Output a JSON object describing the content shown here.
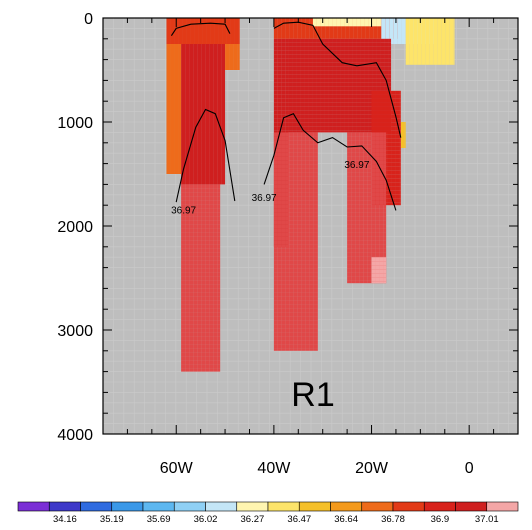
{
  "chart_data": {
    "type": "heatmap",
    "title": "",
    "xlabel": "",
    "ylabel": "",
    "x_axis": {
      "unit": "deg_lon",
      "range": [
        -75,
        10
      ],
      "ticks": [
        -60,
        -40,
        -20,
        0
      ],
      "tick_labels": [
        "60W",
        "40W",
        "20W",
        "0"
      ]
    },
    "y_axis": {
      "unit": "depth_m",
      "range": [
        0,
        4000
      ],
      "inverted": true,
      "ticks": [
        0,
        1000,
        2000,
        3000,
        4000
      ],
      "tick_labels": [
        "0",
        "1000",
        "2000",
        "3000",
        "4000"
      ]
    },
    "background_color": "#bebebe",
    "grid": true,
    "region_label": "R1",
    "colorbar": {
      "placement": "bottom",
      "colors": [
        "#7b2fd6",
        "#3e39c9",
        "#2f6be0",
        "#3a98e8",
        "#5db7f0",
        "#8fd0f5",
        "#c4e6f7",
        "#fff5b0",
        "#fde46a",
        "#f5c02a",
        "#f49a1c",
        "#ee6b1b",
        "#e23a17",
        "#d8221b",
        "#cf1f1f",
        "#f4a6a6"
      ],
      "level_labels": [
        "34.16",
        "35.19",
        "35.69",
        "36.02",
        "36.27",
        "36.47",
        "36.64",
        "36.78",
        "36.9",
        "37.01"
      ]
    },
    "contour": {
      "level": 36.97,
      "label": "36.97",
      "paths": [
        [
          [
            -61,
            170
          ],
          [
            -60,
            100
          ],
          [
            -57,
            60
          ],
          [
            -53,
            50
          ],
          [
            -50,
            60
          ],
          [
            -49,
            150
          ]
        ],
        [
          [
            -40,
            100
          ],
          [
            -38,
            50
          ],
          [
            -35,
            40
          ],
          [
            -32,
            70
          ],
          [
            -30,
            250
          ],
          [
            -26,
            430
          ],
          [
            -23,
            460
          ],
          [
            -19,
            430
          ],
          [
            -17,
            600
          ],
          [
            -15,
            950
          ],
          [
            -14,
            1150
          ]
        ],
        [
          [
            -60,
            1770
          ],
          [
            -58.5,
            1450
          ],
          [
            -56,
            1050
          ],
          [
            -54,
            880
          ],
          [
            -52,
            920
          ],
          [
            -50,
            1180
          ],
          [
            -48,
            1760
          ]
        ],
        [
          [
            -42,
            1600
          ],
          [
            -40,
            1320
          ],
          [
            -38,
            960
          ],
          [
            -36,
            920
          ],
          [
            -34,
            1080
          ],
          [
            -31,
            1200
          ],
          [
            -28,
            1150
          ],
          [
            -25,
            1240
          ],
          [
            -22,
            1230
          ],
          [
            -19,
            1380
          ],
          [
            -17,
            1560
          ],
          [
            -15,
            1850
          ]
        ]
      ],
      "labels": [
        [
          -58.5,
          1880
        ],
        [
          -42,
          1760
        ],
        [
          -23,
          1440
        ]
      ]
    },
    "fields": [
      {
        "x": [
          -62,
          -47
        ],
        "y": [
          0,
          250
        ],
        "value": 36.97,
        "color": "#e23a17"
      },
      {
        "x": [
          -40,
          -14
        ],
        "y": [
          0,
          200
        ],
        "value": 36.97,
        "color": "#e23a17"
      },
      {
        "x": [
          -32,
          -18
        ],
        "y": [
          0,
          80
        ],
        "value": 36.47,
        "color": "#fff5b0"
      },
      {
        "x": [
          -18,
          -7
        ],
        "y": [
          0,
          250
        ],
        "value": 36.27,
        "color": "#c4e6f7"
      },
      {
        "x": [
          -13,
          -3
        ],
        "y": [
          0,
          450
        ],
        "value": 36.47,
        "color": "#fde46a"
      },
      {
        "x": [
          -14,
          -13
        ],
        "y": [
          1000,
          1250
        ],
        "value": 36.64,
        "color": "#f5c02a"
      },
      {
        "x": [
          -62,
          -59
        ],
        "y": [
          250,
          1500
        ],
        "value": 36.78,
        "color": "#ee6b1b"
      },
      {
        "x": [
          -59,
          -50
        ],
        "y": [
          250,
          1600
        ],
        "value": 37.01,
        "color": "#cf1f1f"
      },
      {
        "x": [
          -50,
          -47
        ],
        "y": [
          250,
          500
        ],
        "value": 36.78,
        "color": "#ee6b1b"
      },
      {
        "x": [
          -40,
          -37
        ],
        "y": [
          200,
          2200
        ],
        "value": 37.01,
        "color": "#cf1f1f"
      },
      {
        "x": [
          -37,
          -16
        ],
        "y": [
          200,
          1100
        ],
        "value": 37.01,
        "color": "#cf1f1f"
      },
      {
        "x": [
          -20,
          -14
        ],
        "y": [
          700,
          1800
        ],
        "value": 36.9,
        "color": "#d8221b"
      },
      {
        "x": [
          -59,
          -51
        ],
        "y": [
          1600,
          3400
        ],
        "value": 36.97,
        "color": "#e04848"
      },
      {
        "x": [
          -40,
          -31
        ],
        "y": [
          1100,
          3200
        ],
        "value": 36.97,
        "color": "#e04848"
      },
      {
        "x": [
          -25,
          -17
        ],
        "y": [
          1100,
          2550
        ],
        "value": 36.97,
        "color": "#e04848"
      },
      {
        "x": [
          -20,
          -17
        ],
        "y": [
          2300,
          2550
        ],
        "value": 37.1,
        "color": "#f4a6a6"
      }
    ]
  }
}
